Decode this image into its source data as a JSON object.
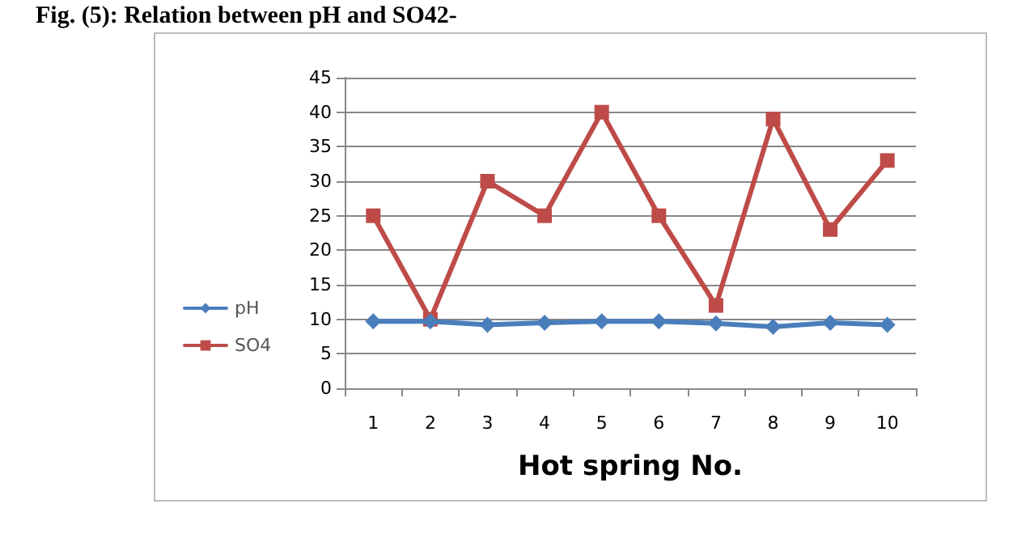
{
  "chart_data": {
    "type": "line",
    "title": "Fig. (5): Relation between pH and SO42-",
    "xlabel": "Hot spring No.",
    "categories": [
      "1",
      "2",
      "3",
      "4",
      "5",
      "6",
      "7",
      "8",
      "9",
      "10"
    ],
    "series": [
      {
        "name": "pH",
        "color": "#4a7ebb",
        "marker": "diamond",
        "values": [
          9.7,
          9.7,
          9.2,
          9.5,
          9.7,
          9.7,
          9.4,
          8.9,
          9.5,
          9.2
        ]
      },
      {
        "name": "SO4",
        "color": "#be4b48",
        "marker": "square",
        "values": [
          25,
          10,
          30,
          25,
          40,
          25,
          12,
          39,
          23,
          33
        ]
      }
    ],
    "ylim": [
      0,
      45
    ],
    "yticks": [
      0,
      5,
      10,
      15,
      20,
      25,
      30,
      35,
      40,
      45
    ],
    "grid": "y",
    "legend": "left"
  }
}
